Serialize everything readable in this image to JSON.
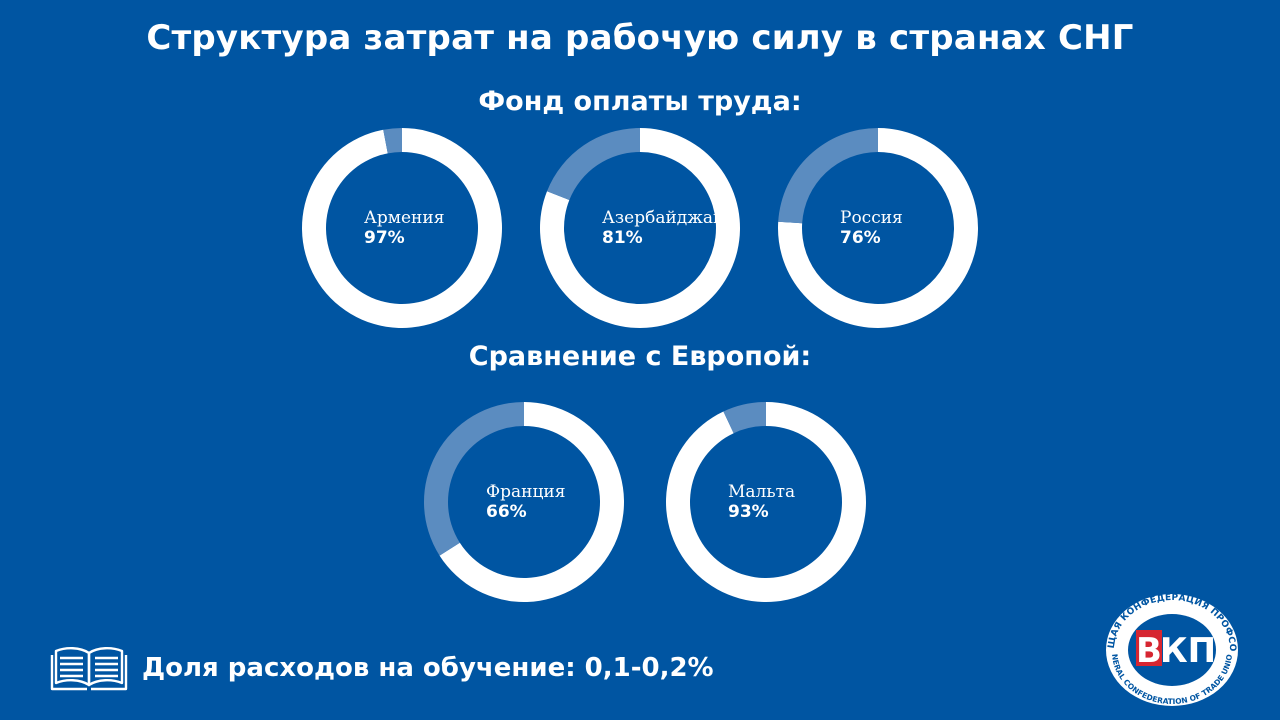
{
  "title": "Структура затрат на рабочую силу в странах СНГ",
  "section1_title": "Фонд оплаты труда:",
  "section2_title": "Сравнение с Европой:",
  "footer_text": "Доля расходов на обучение: 0,1-0,2%",
  "logo": {
    "mark": "ВКП",
    "ring_top": "ВСЕОБЩАЯ КОНФЕДЕРАЦИЯ ПРОФСОЮЗОВ",
    "ring_bottom": "GENERAL CONFEDERATION OF TRADE UNIONS"
  },
  "colors": {
    "background": "#0055a2",
    "ring_main": "#ffffff",
    "ring_rest": "#5b8cc0",
    "logo_red": "#d62631"
  },
  "chart_data": [
    {
      "type": "pie",
      "label": "Армения",
      "value_label": "97%",
      "values": [
        97,
        3
      ]
    },
    {
      "type": "pie",
      "label": "Азербайджан",
      "value_label": "81%",
      "values": [
        81,
        19
      ]
    },
    {
      "type": "pie",
      "label": "Россия",
      "value_label": "76%",
      "values": [
        76,
        24
      ]
    },
    {
      "type": "pie",
      "label": "Франция",
      "value_label": "66%",
      "values": [
        66,
        34
      ]
    },
    {
      "type": "pie",
      "label": "Мальта",
      "value_label": "93%",
      "values": [
        93,
        7
      ]
    }
  ]
}
